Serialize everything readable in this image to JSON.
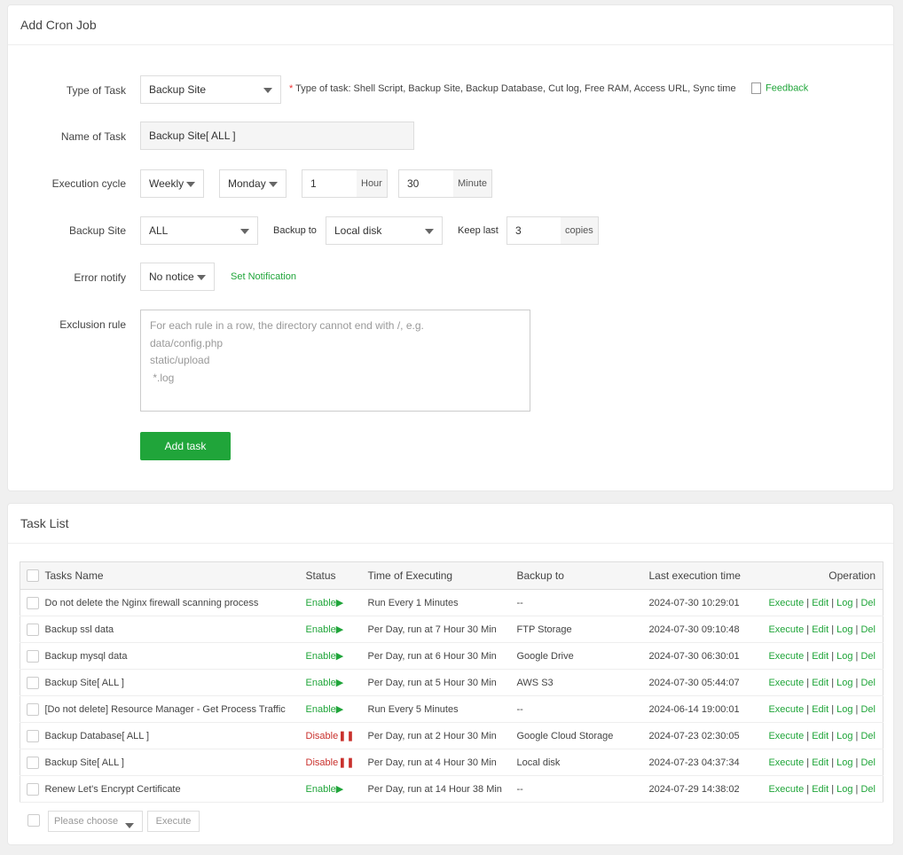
{
  "add_panel": {
    "title": "Add Cron Job",
    "type_label": "Type of Task",
    "type_value": "Backup Site",
    "type_hint_star": "*",
    "type_hint": "Type of task: Shell Script, Backup Site, Backup Database, Cut log, Free RAM, Access URL, Sync time",
    "feedback": "Feedback",
    "name_label": "Name of Task",
    "name_value": "Backup Site[ ALL ]",
    "cycle_label": "Execution cycle",
    "cycle_value": "Weekly",
    "day_value": "Monday",
    "hour_value": "1",
    "hour_unit": "Hour",
    "minute_value": "30",
    "minute_unit": "Minute",
    "backup_site_label": "Backup Site",
    "backup_site_value": "ALL",
    "backup_to_label": "Backup to",
    "backup_to_value": "Local disk",
    "keep_label": "Keep last",
    "keep_value": "3",
    "keep_unit": "copies",
    "notify_label": "Error notify",
    "notify_value": "No notice",
    "set_notification": "Set Notification",
    "exclusion_label": "Exclusion rule",
    "exclusion_placeholder": "For each rule in a row, the directory cannot end with /, e.g.\ndata/config.php\nstatic/upload\n *.log",
    "add_button": "Add task"
  },
  "task_panel": {
    "title": "Task List",
    "columns": [
      "Tasks Name",
      "Status",
      "Time of Executing",
      "Backup to",
      "Last execution time",
      "Operation"
    ],
    "rows": [
      {
        "name": "Do not delete the Nginx firewall scanning process",
        "status": "Enable",
        "time": "Run Every 1 Minutes",
        "backup": "--",
        "last": "2024-07-30 10:29:01"
      },
      {
        "name": "Backup ssl data",
        "status": "Enable",
        "time": "Per Day, run at 7 Hour 30 Min",
        "backup": "FTP Storage",
        "last": "2024-07-30 09:10:48"
      },
      {
        "name": "Backup mysql data",
        "status": "Enable",
        "time": "Per Day, run at 6 Hour 30 Min",
        "backup": "Google Drive",
        "last": "2024-07-30 06:30:01"
      },
      {
        "name": "Backup Site[ ALL ]",
        "status": "Enable",
        "time": "Per Day, run at 5 Hour 30 Min",
        "backup": "AWS S3",
        "last": "2024-07-30 05:44:07"
      },
      {
        "name": "[Do not delete] Resource Manager - Get Process Traffic",
        "status": "Enable",
        "time": "Run Every 5 Minutes",
        "backup": "--",
        "last": "2024-06-14 19:00:01"
      },
      {
        "name": "Backup Database[ ALL ]",
        "status": "Disable",
        "time": "Per Day, run at 2 Hour 30 Min",
        "backup": "Google Cloud Storage",
        "last": "2024-07-23 02:30:05"
      },
      {
        "name": "Backup Site[ ALL ]",
        "status": "Disable",
        "time": "Per Day, run at 4 Hour 30 Min",
        "backup": "Local disk",
        "last": "2024-07-23 04:37:34"
      },
      {
        "name": "Renew Let's Encrypt Certificate",
        "status": "Enable",
        "time": "Per Day, run at 14 Hour 38 Min",
        "backup": "--",
        "last": "2024-07-29 14:38:02"
      }
    ],
    "ops": [
      "Execute",
      "Edit",
      "Log",
      "Del"
    ],
    "batch_select": "Please choose",
    "batch_execute": "Execute"
  },
  "colors": {
    "accent": "#20a53a",
    "disable": "#c9302c"
  }
}
